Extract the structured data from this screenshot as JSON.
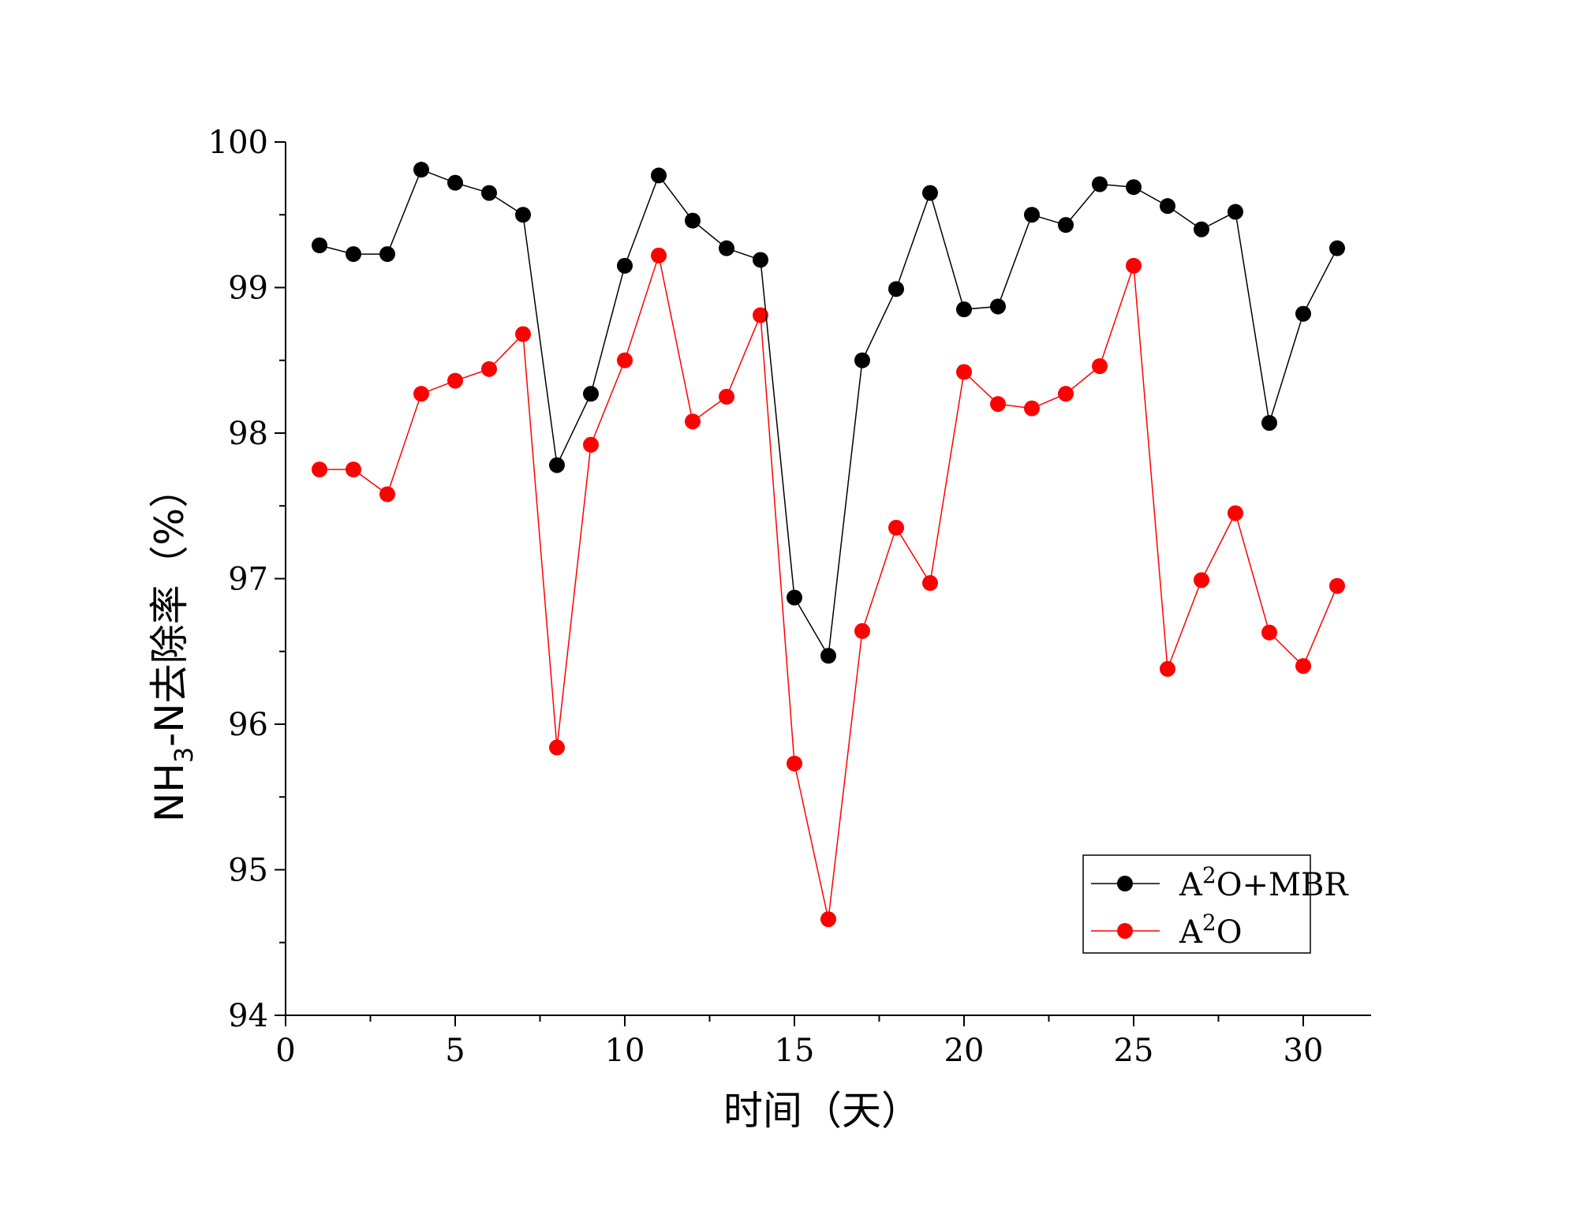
{
  "chart_data": {
    "type": "line",
    "title": "",
    "xlabel": "时间（天）",
    "ylabel": {
      "prefix": "NH",
      "subscript": "3",
      "suffix": "-N去除率（%）"
    },
    "xlim": [
      0,
      32
    ],
    "ylim": [
      94,
      100
    ],
    "xticks": [
      0,
      5,
      10,
      15,
      20,
      25,
      30
    ],
    "yticks": [
      94,
      95,
      96,
      97,
      98,
      99,
      100
    ],
    "x": [
      1,
      2,
      3,
      4,
      5,
      6,
      7,
      8,
      9,
      10,
      11,
      12,
      13,
      14,
      15,
      16,
      17,
      18,
      19,
      20,
      21,
      22,
      23,
      24,
      25,
      26,
      27,
      28,
      29,
      30,
      31
    ],
    "series": [
      {
        "name": "A2O+MBR",
        "legend": {
          "base": "A",
          "sup": "2",
          "rest": "O+MBR"
        },
        "color": "#000000",
        "values": [
          99.29,
          99.23,
          99.23,
          99.81,
          99.72,
          99.65,
          99.5,
          97.78,
          98.27,
          99.15,
          99.77,
          99.46,
          99.27,
          99.19,
          96.87,
          96.47,
          98.5,
          98.99,
          99.65,
          98.85,
          98.87,
          99.5,
          99.43,
          99.71,
          99.69,
          99.56,
          99.4,
          99.52,
          98.07,
          98.82,
          99.27
        ]
      },
      {
        "name": "A2O",
        "legend": {
          "base": "A",
          "sup": "2",
          "rest": "O"
        },
        "color": "#ff0000",
        "values": [
          97.75,
          97.75,
          97.58,
          98.27,
          98.36,
          98.44,
          98.68,
          95.84,
          97.92,
          98.5,
          99.22,
          98.08,
          98.25,
          98.81,
          95.73,
          94.66,
          96.64,
          97.35,
          96.97,
          98.42,
          98.2,
          98.17,
          98.27,
          98.46,
          99.15,
          96.38,
          96.99,
          97.45,
          96.63,
          96.4,
          96.95
        ]
      }
    ],
    "legend_position": "lower-right"
  }
}
